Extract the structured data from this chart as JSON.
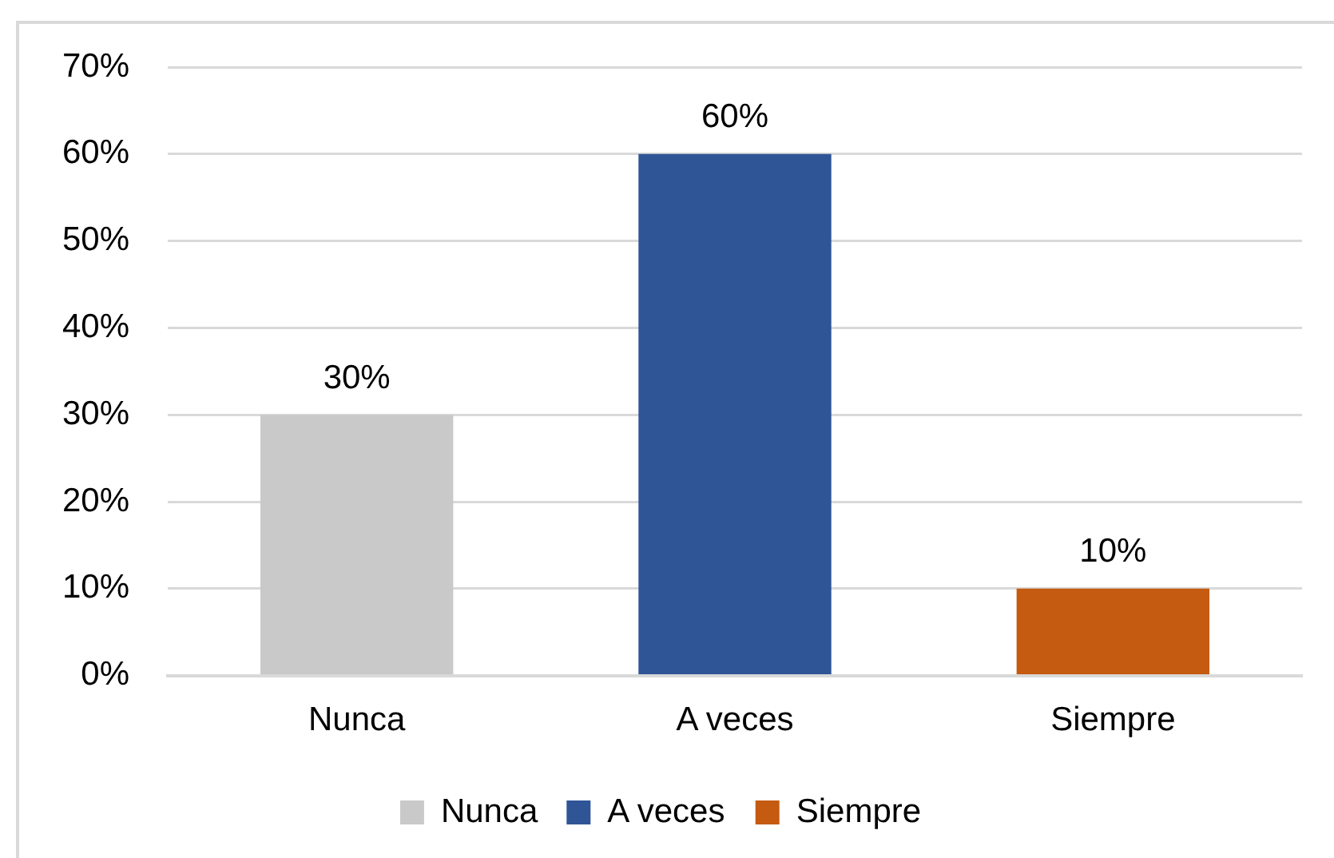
{
  "chart_data": {
    "type": "bar",
    "categories": [
      "Nunca",
      "A veces",
      "Siempre"
    ],
    "series": [
      {
        "name": "Nunca",
        "color": "#c9c9c9",
        "values": [
          30,
          null,
          null
        ],
        "value_labels": [
          "30%",
          null,
          null
        ]
      },
      {
        "name": "A veces",
        "color": "#2f5597",
        "values": [
          null,
          60,
          null
        ],
        "value_labels": [
          null,
          "60%",
          null
        ]
      },
      {
        "name": "Siempre",
        "color": "#c55a11",
        "values": [
          null,
          null,
          10
        ],
        "value_labels": [
          null,
          null,
          "10%"
        ]
      }
    ],
    "ylim": [
      0,
      70
    ],
    "yticks": [
      {
        "value": 0,
        "label": "0%"
      },
      {
        "value": 10,
        "label": "10%"
      },
      {
        "value": 20,
        "label": "20%"
      },
      {
        "value": 30,
        "label": "30%"
      },
      {
        "value": 40,
        "label": "40%"
      },
      {
        "value": 50,
        "label": "50%"
      },
      {
        "value": 60,
        "label": "60%"
      },
      {
        "value": 70,
        "label": "70%"
      }
    ],
    "grid": "y",
    "legend": "bottom"
  }
}
